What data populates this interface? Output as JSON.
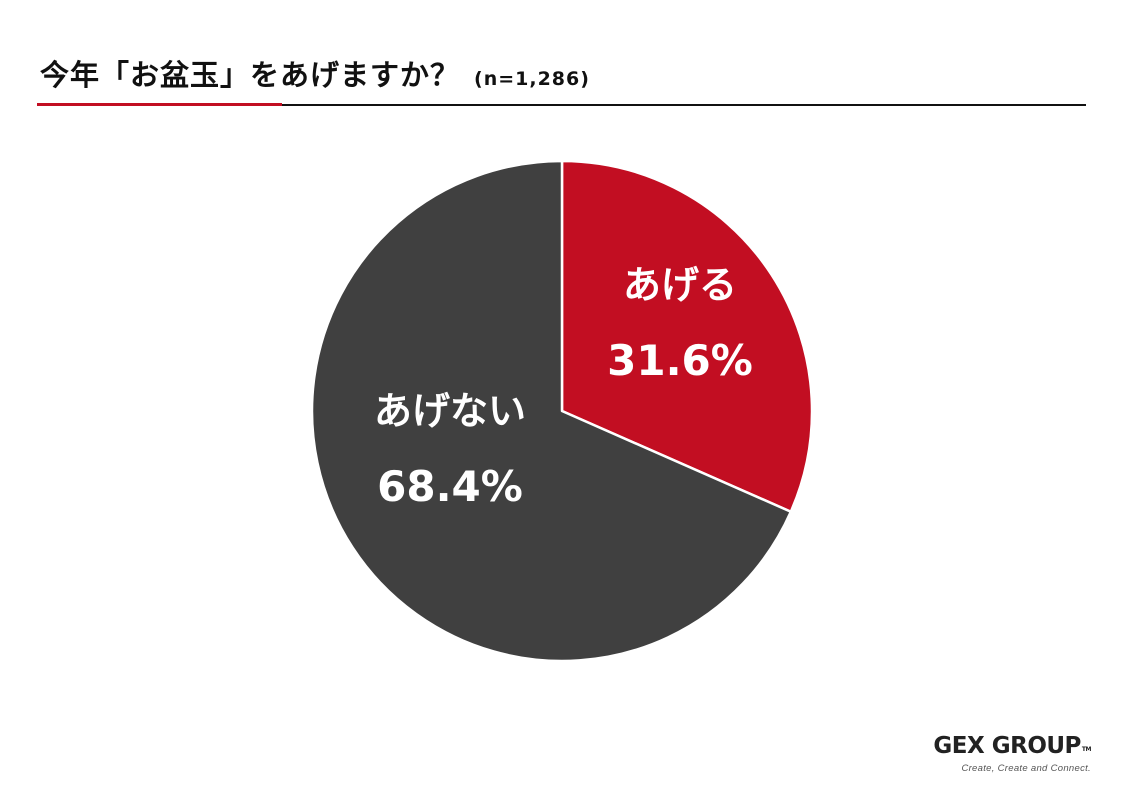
{
  "header": {
    "title": "今年「お盆玉」をあげますか？",
    "sample": "(n=1,286)"
  },
  "chart_data": {
    "type": "pie",
    "title": "今年「お盆玉」をあげますか？",
    "subtitle": "(n=1,286)",
    "start": "12 o'clock, clockwise",
    "slices": [
      {
        "label": "あげる",
        "value": 31.6,
        "display": "31.6%",
        "color": "#c20e22"
      },
      {
        "label": "あげない",
        "value": 68.4,
        "display": "68.4%",
        "color": "#404040"
      }
    ]
  },
  "brand": {
    "name": "GEX GROUP",
    "tm": "TM",
    "tagline": "Create, Create and Connect."
  }
}
